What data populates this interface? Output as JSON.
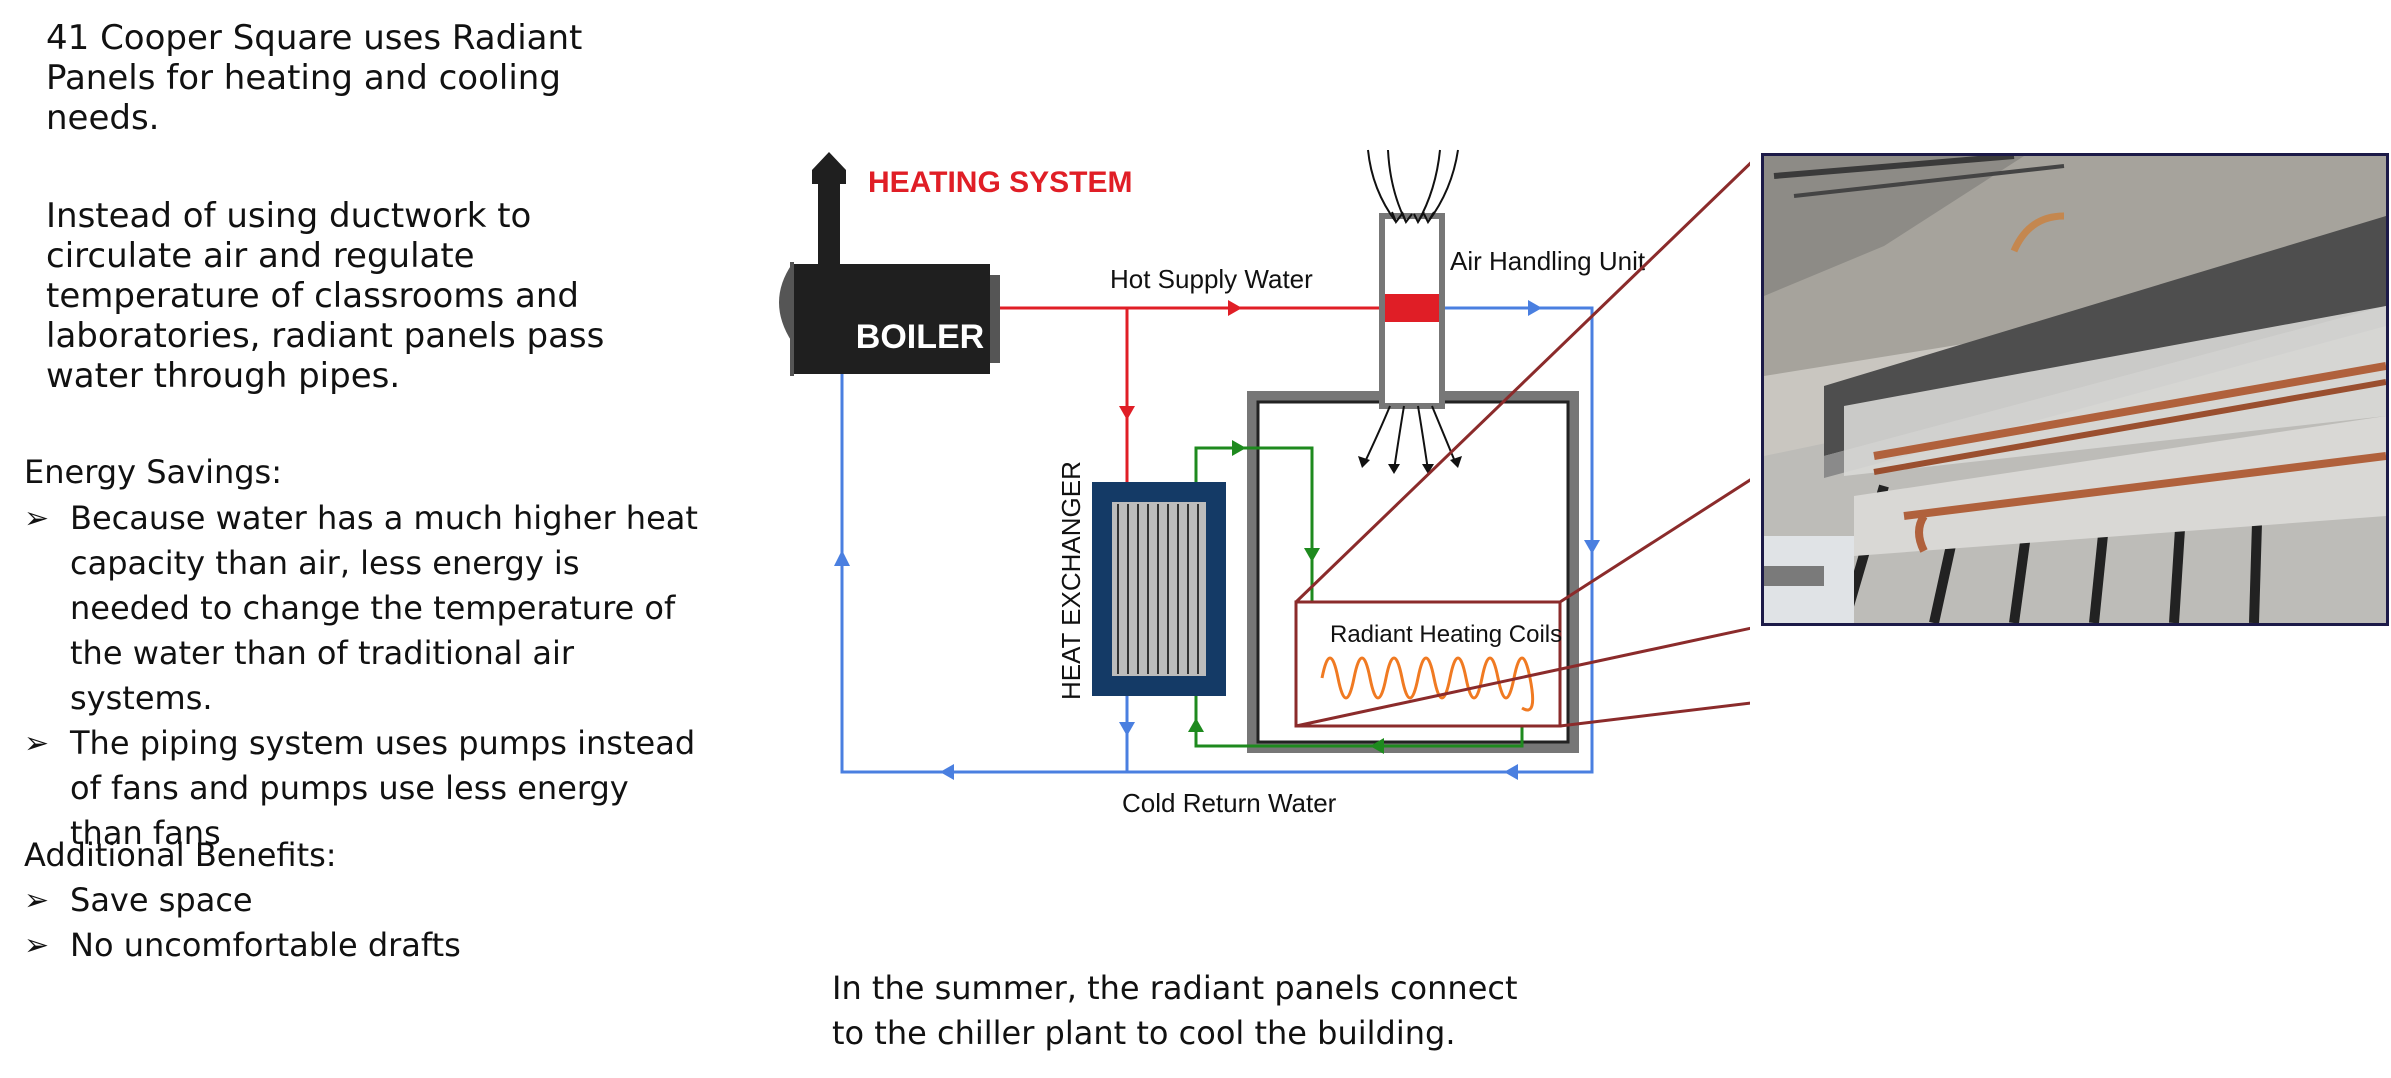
{
  "text": {
    "intro": "41 Cooper Square uses Radiant Panels for heating and cooling needs.",
    "detail": "Instead of using ductwork to circulate air and regulate temperature of classrooms and laboratories, radiant panels pass water through pipes.",
    "energy_heading": "Energy Savings:",
    "energy_items": [
      "Because water has a much higher heat capacity than air, less energy is needed to change the temperature of the water than of traditional air systems.",
      "The piping system uses pumps instead of fans and pumps use less energy than fans"
    ],
    "benefits_heading": "Additional Benefits:",
    "benefit_items": [
      "Save space",
      "No uncomfortable drafts"
    ],
    "summer": "In the summer, the radiant panels connect to the chiller plant to cool the building.",
    "bullet_glyph": "➢"
  },
  "diagram": {
    "title": "HEATING SYSTEM",
    "boiler": "BOILER",
    "hot_supply": "Hot Supply Water",
    "air_handling": "Air Handling Unit",
    "heat_exchanger": "HEAT EXCHANGER",
    "radiant_coils": "Radiant Heating Coils",
    "cold_return": "Cold Return Water"
  },
  "colors": {
    "hot": "#e01e26",
    "cold": "#4a7fe0",
    "loop": "#1e8a1e",
    "coil": "#f07a22",
    "title": "#e01e26",
    "boiler": "#1f1f1f",
    "exchanger": "#143a66",
    "callout": "#8b2b2b"
  }
}
